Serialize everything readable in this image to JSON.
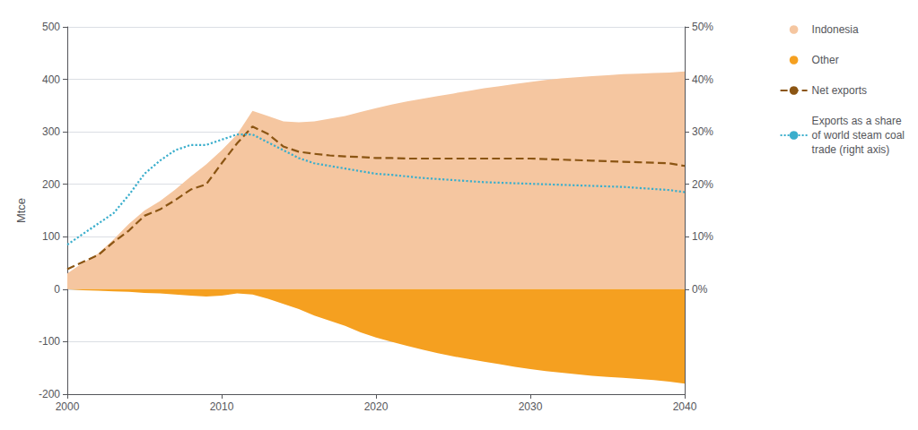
{
  "chart_data": {
    "type": "line",
    "x": [
      2000,
      2001,
      2002,
      2003,
      2004,
      2005,
      2006,
      2007,
      2008,
      2009,
      2010,
      2011,
      2012,
      2013,
      2014,
      2015,
      2016,
      2017,
      2018,
      2019,
      2020,
      2021,
      2022,
      2023,
      2024,
      2025,
      2026,
      2027,
      2028,
      2029,
      2030,
      2031,
      2032,
      2033,
      2034,
      2035,
      2036,
      2037,
      2038,
      2039,
      2040
    ],
    "xlim": [
      2000,
      2040
    ],
    "xticks": [
      2000,
      2010,
      2020,
      2030,
      2040
    ],
    "ylim": [
      -200,
      500
    ],
    "yticks": [
      -200,
      -100,
      0,
      100,
      200,
      300,
      400,
      500
    ],
    "y2lim": [
      -0.2,
      0.5
    ],
    "y2ticks": [
      {
        "value": 0.0,
        "label": "0%"
      },
      {
        "value": 0.1,
        "label": "10%"
      },
      {
        "value": 0.2,
        "label": "20%"
      },
      {
        "value": 0.3,
        "label": "30%"
      },
      {
        "value": 0.4,
        "label": "40%"
      },
      {
        "value": 0.5,
        "label": "50%"
      }
    ],
    "ylabel": "Mtce",
    "grid": true,
    "legend": "right",
    "series": [
      {
        "name": "Indonesia",
        "type": "area",
        "color": "#F5C6A0",
        "values": [
          30,
          50,
          68,
          95,
          125,
          150,
          168,
          190,
          215,
          238,
          265,
          295,
          340,
          330,
          320,
          318,
          320,
          325,
          330,
          338,
          345,
          352,
          358,
          363,
          368,
          373,
          378,
          383,
          387,
          391,
          395,
          399,
          402,
          404,
          406,
          408,
          410,
          411,
          412,
          413,
          415
        ]
      },
      {
        "name": "Other",
        "type": "area",
        "color": "#F5A020",
        "values": [
          0,
          -2,
          -3,
          -4,
          -5,
          -7,
          -8,
          -10,
          -12,
          -14,
          -12,
          -8,
          -10,
          -18,
          -28,
          -38,
          -50,
          -60,
          -70,
          -82,
          -92,
          -100,
          -108,
          -115,
          -122,
          -128,
          -133,
          -138,
          -143,
          -148,
          -152,
          -156,
          -159,
          -162,
          -165,
          -167,
          -169,
          -171,
          -173,
          -176,
          -180
        ]
      },
      {
        "name": "Net exports",
        "type": "line",
        "line_style": "dashed",
        "color": "#8B5513",
        "values": [
          38,
          52,
          65,
          90,
          112,
          140,
          152,
          170,
          190,
          200,
          240,
          278,
          310,
          296,
          272,
          262,
          258,
          255,
          253,
          252,
          250,
          250,
          249,
          249,
          249,
          249,
          249,
          249,
          249,
          249,
          249,
          248,
          247,
          246,
          245,
          244,
          243,
          242,
          241,
          240,
          235
        ]
      },
      {
        "name": "Exports as a share\nof world steam coal\ntrade (right axis)",
        "type": "line",
        "line_style": "dotted",
        "color": "#3AAECC",
        "axis": "y2",
        "values": [
          0.085,
          0.105,
          0.125,
          0.145,
          0.18,
          0.22,
          0.245,
          0.265,
          0.275,
          0.275,
          0.285,
          0.295,
          0.295,
          0.28,
          0.265,
          0.25,
          0.24,
          0.235,
          0.23,
          0.225,
          0.22,
          0.218,
          0.215,
          0.212,
          0.21,
          0.208,
          0.206,
          0.204,
          0.203,
          0.202,
          0.201,
          0.2,
          0.199,
          0.198,
          0.197,
          0.196,
          0.195,
          0.193,
          0.191,
          0.189,
          0.185
        ]
      }
    ]
  }
}
